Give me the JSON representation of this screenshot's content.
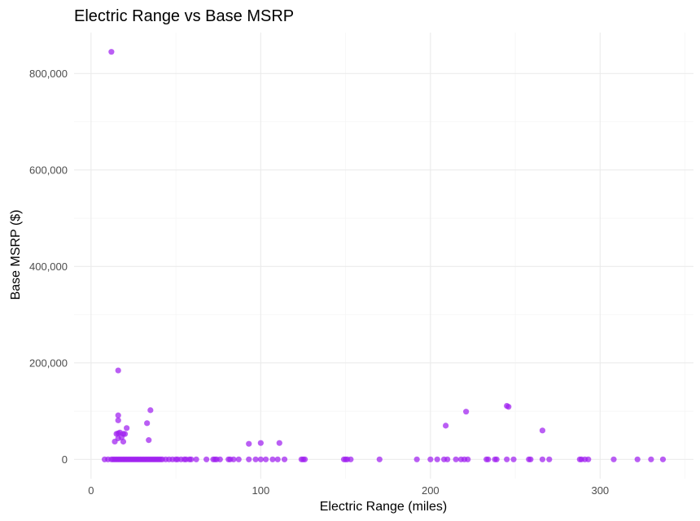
{
  "chart_data": {
    "type": "scatter",
    "title": "Electric Range vs Base MSRP",
    "xlabel": "Electric Range (miles)",
    "ylabel": "Base MSRP ($)",
    "xlim": [
      -10,
      355
    ],
    "ylim": [
      -40000,
      885000
    ],
    "x_ticks": [
      0,
      100,
      200,
      300
    ],
    "y_ticks": [
      0,
      200000,
      400000,
      600000,
      800000
    ],
    "y_tick_labels": [
      "0",
      "200,000",
      "400,000",
      "600,000",
      "800,000"
    ],
    "x_tick_labels": [
      "0",
      "100",
      "200",
      "300"
    ],
    "grid": true,
    "point_color": "#a020f0",
    "points": [
      {
        "x": 12,
        "y": 845000
      },
      {
        "x": 16,
        "y": 184400
      },
      {
        "x": 35,
        "y": 102000
      },
      {
        "x": 245,
        "y": 110950
      },
      {
        "x": 246,
        "y": 109000
      },
      {
        "x": 221,
        "y": 98950
      },
      {
        "x": 16,
        "y": 91250
      },
      {
        "x": 16,
        "y": 81000
      },
      {
        "x": 33,
        "y": 75095
      },
      {
        "x": 209,
        "y": 69900
      },
      {
        "x": 21,
        "y": 64950
      },
      {
        "x": 266,
        "y": 59900
      },
      {
        "x": 17,
        "y": 55700
      },
      {
        "x": 16,
        "y": 54000
      },
      {
        "x": 19,
        "y": 53000
      },
      {
        "x": 20,
        "y": 52650
      },
      {
        "x": 15,
        "y": 52900
      },
      {
        "x": 18,
        "y": 45600
      },
      {
        "x": 16,
        "y": 43700
      },
      {
        "x": 34,
        "y": 39995
      },
      {
        "x": 14,
        "y": 36900
      },
      {
        "x": 19,
        "y": 36800
      },
      {
        "x": 100,
        "y": 33950
      },
      {
        "x": 111,
        "y": 33950
      },
      {
        "x": 93,
        "y": 32250
      },
      {
        "x": 8,
        "y": 0
      },
      {
        "x": 10,
        "y": 0
      },
      {
        "x": 12,
        "y": 0
      },
      {
        "x": 13,
        "y": 0
      },
      {
        "x": 14,
        "y": 0
      },
      {
        "x": 15,
        "y": 0
      },
      {
        "x": 16,
        "y": 0
      },
      {
        "x": 17,
        "y": 0
      },
      {
        "x": 18,
        "y": 0
      },
      {
        "x": 19,
        "y": 0
      },
      {
        "x": 20,
        "y": 0
      },
      {
        "x": 21,
        "y": 0
      },
      {
        "x": 22,
        "y": 0
      },
      {
        "x": 23,
        "y": 0
      },
      {
        "x": 24,
        "y": 0
      },
      {
        "x": 25,
        "y": 0
      },
      {
        "x": 26,
        "y": 0
      },
      {
        "x": 27,
        "y": 0
      },
      {
        "x": 28,
        "y": 0
      },
      {
        "x": 29,
        "y": 0
      },
      {
        "x": 30,
        "y": 0
      },
      {
        "x": 31,
        "y": 0
      },
      {
        "x": 32,
        "y": 0
      },
      {
        "x": 33,
        "y": 0
      },
      {
        "x": 34,
        "y": 0
      },
      {
        "x": 35,
        "y": 0
      },
      {
        "x": 36,
        "y": 0
      },
      {
        "x": 37,
        "y": 0
      },
      {
        "x": 38,
        "y": 0
      },
      {
        "x": 39,
        "y": 0
      },
      {
        "x": 40,
        "y": 0
      },
      {
        "x": 41,
        "y": 0
      },
      {
        "x": 42,
        "y": 0
      },
      {
        "x": 44,
        "y": 0
      },
      {
        "x": 46,
        "y": 0
      },
      {
        "x": 48,
        "y": 0
      },
      {
        "x": 50,
        "y": 0
      },
      {
        "x": 51,
        "y": 0
      },
      {
        "x": 53,
        "y": 0
      },
      {
        "x": 55,
        "y": 0
      },
      {
        "x": 56,
        "y": 0
      },
      {
        "x": 58,
        "y": 0
      },
      {
        "x": 59,
        "y": 0
      },
      {
        "x": 62,
        "y": 0
      },
      {
        "x": 68,
        "y": 0
      },
      {
        "x": 72,
        "y": 0
      },
      {
        "x": 73,
        "y": 0
      },
      {
        "x": 74,
        "y": 0
      },
      {
        "x": 76,
        "y": 0
      },
      {
        "x": 81,
        "y": 0
      },
      {
        "x": 82,
        "y": 0
      },
      {
        "x": 84,
        "y": 0
      },
      {
        "x": 87,
        "y": 0
      },
      {
        "x": 93,
        "y": 0
      },
      {
        "x": 97,
        "y": 0
      },
      {
        "x": 100,
        "y": 0
      },
      {
        "x": 103,
        "y": 0
      },
      {
        "x": 107,
        "y": 0
      },
      {
        "x": 110,
        "y": 0
      },
      {
        "x": 114,
        "y": 0
      },
      {
        "x": 124,
        "y": 0
      },
      {
        "x": 125,
        "y": 0
      },
      {
        "x": 126,
        "y": 0
      },
      {
        "x": 149,
        "y": 0
      },
      {
        "x": 150,
        "y": 0
      },
      {
        "x": 151,
        "y": 0
      },
      {
        "x": 153,
        "y": 0
      },
      {
        "x": 170,
        "y": 0
      },
      {
        "x": 192,
        "y": 0
      },
      {
        "x": 200,
        "y": 0
      },
      {
        "x": 204,
        "y": 0
      },
      {
        "x": 208,
        "y": 0
      },
      {
        "x": 210,
        "y": 0
      },
      {
        "x": 215,
        "y": 0
      },
      {
        "x": 218,
        "y": 0
      },
      {
        "x": 220,
        "y": 0
      },
      {
        "x": 222,
        "y": 0
      },
      {
        "x": 233,
        "y": 0
      },
      {
        "x": 234,
        "y": 0
      },
      {
        "x": 238,
        "y": 0
      },
      {
        "x": 239,
        "y": 0
      },
      {
        "x": 245,
        "y": 0
      },
      {
        "x": 249,
        "y": 0
      },
      {
        "x": 258,
        "y": 0
      },
      {
        "x": 259,
        "y": 0
      },
      {
        "x": 266,
        "y": 0
      },
      {
        "x": 270,
        "y": 0
      },
      {
        "x": 288,
        "y": 0
      },
      {
        "x": 289,
        "y": 0
      },
      {
        "x": 291,
        "y": 0
      },
      {
        "x": 293,
        "y": 0
      },
      {
        "x": 308,
        "y": 0
      },
      {
        "x": 322,
        "y": 0
      },
      {
        "x": 330,
        "y": 0
      },
      {
        "x": 337,
        "y": 0
      }
    ]
  }
}
